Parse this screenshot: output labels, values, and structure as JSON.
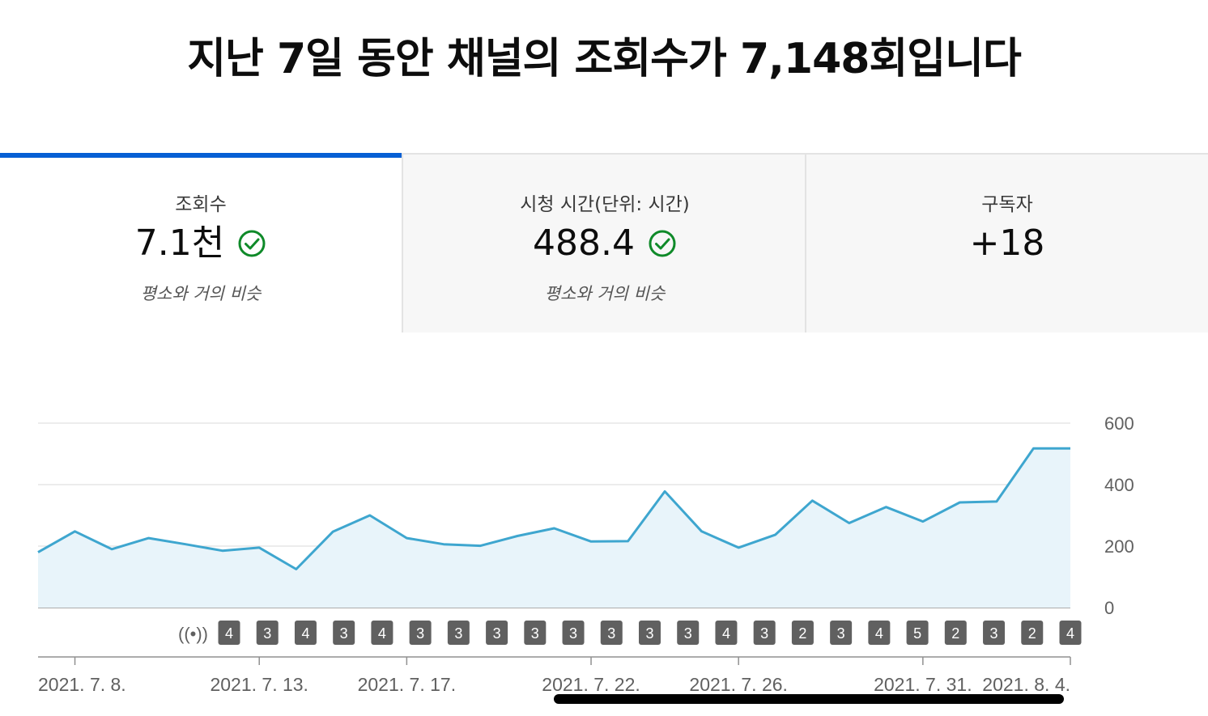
{
  "headline": "지난 7일 동안 채널의 조회수가 7,148회입니다",
  "tabs": [
    {
      "label": "조회수",
      "value": "7.1천",
      "note": "평소와 거의 비슷",
      "check": true,
      "active": true
    },
    {
      "label": "시청 시간(단위: 시간)",
      "value": "488.4",
      "note": "평소와 거의 비슷",
      "check": true,
      "active": false
    },
    {
      "label": "구독자",
      "value": "+18",
      "note": "",
      "check": false,
      "active": false
    }
  ],
  "colors": {
    "accent": "#065fd4",
    "line": "#3ea6cf",
    "fill": "#e8f4fa",
    "check": "#0f8a29",
    "badge": "#606060"
  },
  "live_icon": "live-broadcast-icon",
  "chart_data": {
    "type": "area",
    "ylim": [
      0,
      600
    ],
    "yticks": [
      0,
      200,
      400,
      600
    ],
    "x": [
      "2021-07-07",
      "2021-07-08",
      "2021-07-09",
      "2021-07-10",
      "2021-07-11",
      "2021-07-12",
      "2021-07-13",
      "2021-07-14",
      "2021-07-15",
      "2021-07-16",
      "2021-07-17",
      "2021-07-18",
      "2021-07-19",
      "2021-07-20",
      "2021-07-21",
      "2021-07-22",
      "2021-07-23",
      "2021-07-24",
      "2021-07-25",
      "2021-07-26",
      "2021-07-27",
      "2021-07-28",
      "2021-07-29",
      "2021-07-30",
      "2021-07-31",
      "2021-08-01",
      "2021-08-02",
      "2021-08-03",
      "2021-08-04"
    ],
    "values": [
      180,
      248,
      190,
      226,
      206,
      185,
      195,
      125,
      247,
      300,
      226,
      206,
      201,
      233,
      258,
      215,
      216,
      378,
      248,
      195,
      237,
      348,
      275,
      327,
      280,
      342,
      345,
      518,
      518
    ],
    "x_tick_labels": [
      {
        "date": "2021-07-08",
        "label": "2021. 7. 8."
      },
      {
        "date": "2021-07-13",
        "label": "2021. 7. 13."
      },
      {
        "date": "2021-07-17",
        "label": "2021. 7. 17."
      },
      {
        "date": "2021-07-22",
        "label": "2021. 7. 22."
      },
      {
        "date": "2021-07-26",
        "label": "2021. 7. 26."
      },
      {
        "date": "2021-07-31",
        "label": "2021. 7. 31."
      },
      {
        "date": "2021-08-04",
        "label": "2021. 8. 4."
      }
    ],
    "upload_markers": [
      "4",
      "3",
      "4",
      "3",
      "4",
      "3",
      "3",
      "3",
      "3",
      "3",
      "3",
      "3",
      "3",
      "4",
      "3",
      "2",
      "3",
      "4",
      "5",
      "2",
      "3",
      "2",
      "4"
    ],
    "grid": true
  }
}
